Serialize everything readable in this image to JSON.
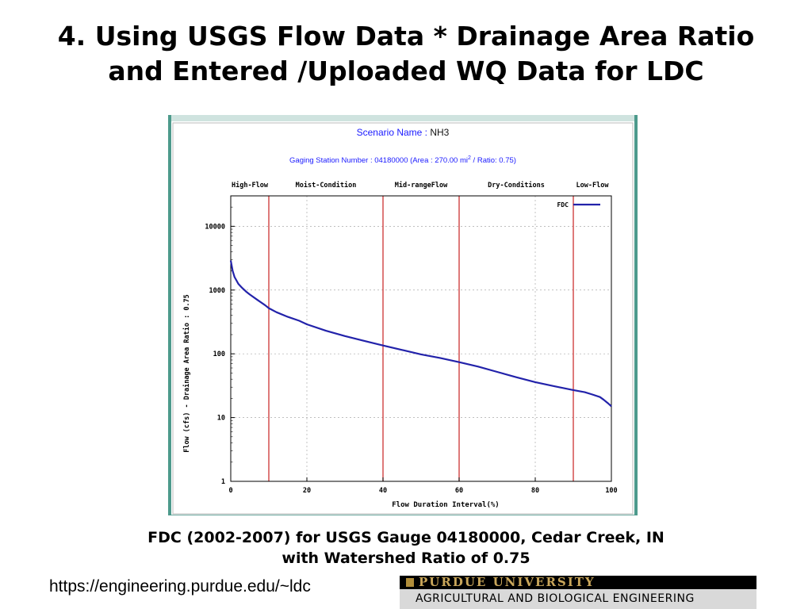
{
  "slide": {
    "title_line1": "4. Using USGS Flow Data * Drainage Area Ratio",
    "title_line2": "and Entered /Uploaded WQ Data for LDC",
    "caption_line1": "FDC (2002-2007) for USGS Gauge 04180000, Cedar Creek, IN",
    "caption_line2": "with Watershed Ratio of 0.75",
    "url": "https://engineering.purdue.edu/~ldc"
  },
  "logo": {
    "name": "PURDUE UNIVERSITY",
    "subtitle": "AGRICULTURAL AND BIOLOGICAL ENGINEERING"
  },
  "chart_data": {
    "type": "line",
    "scenario_label": "Scenario Name : ",
    "scenario_value": "NH3",
    "station_text": "Gaging Station Number : 04180000 (Area : 270.00 mi",
    "station_sup": "2",
    "station_text_end": " / Ratio: 0.75)",
    "xlabel": "Flow Duration Interval(%)",
    "ylabel": "Flow (cfs) - Drainage Area Ratio : 0.75",
    "xlim": [
      0,
      100
    ],
    "ylim": [
      1,
      30000
    ],
    "yscale": "log",
    "x_ticks": [
      "0",
      "20",
      "40",
      "60",
      "80",
      "100"
    ],
    "x_tick_values": [
      0,
      20,
      40,
      60,
      80,
      100
    ],
    "y_ticks": [
      "1",
      "10",
      "100",
      "1000",
      "10000"
    ],
    "y_tick_values": [
      1,
      10,
      100,
      1000,
      10000
    ],
    "grid": true,
    "legend_position": "top-right",
    "zones": [
      {
        "label": "High-Flow",
        "from": 0,
        "to": 10
      },
      {
        "label": "Moist-Condition",
        "from": 10,
        "to": 40
      },
      {
        "label": "Mid-rangeFlow",
        "from": 40,
        "to": 60
      },
      {
        "label": "Dry-Conditions",
        "from": 60,
        "to": 90
      },
      {
        "label": "Low-Flow",
        "from": 90,
        "to": 100
      }
    ],
    "boundaries": [
      10,
      40,
      60,
      90
    ],
    "series": [
      {
        "name": "FDC",
        "color": "#2222aa",
        "x": [
          0,
          0.5,
          1,
          2,
          3,
          4,
          5,
          7,
          9,
          10,
          12,
          15,
          18,
          20,
          25,
          30,
          35,
          40,
          45,
          50,
          55,
          60,
          65,
          70,
          75,
          80,
          85,
          90,
          93,
          95,
          97,
          98,
          99,
          99.5,
          100
        ],
        "y": [
          2900,
          2000,
          1600,
          1250,
          1080,
          950,
          850,
          700,
          580,
          520,
          450,
          380,
          330,
          290,
          230,
          190,
          160,
          135,
          115,
          98,
          86,
          74,
          63,
          52,
          43,
          36,
          31,
          27,
          25,
          23,
          21,
          19,
          17,
          16,
          15
        ]
      }
    ],
    "line_colors": {
      "boundary": "#cc3333",
      "grid": "#aaaaaa",
      "title_blue": "#1a1aff",
      "series": "#2222aa"
    }
  }
}
